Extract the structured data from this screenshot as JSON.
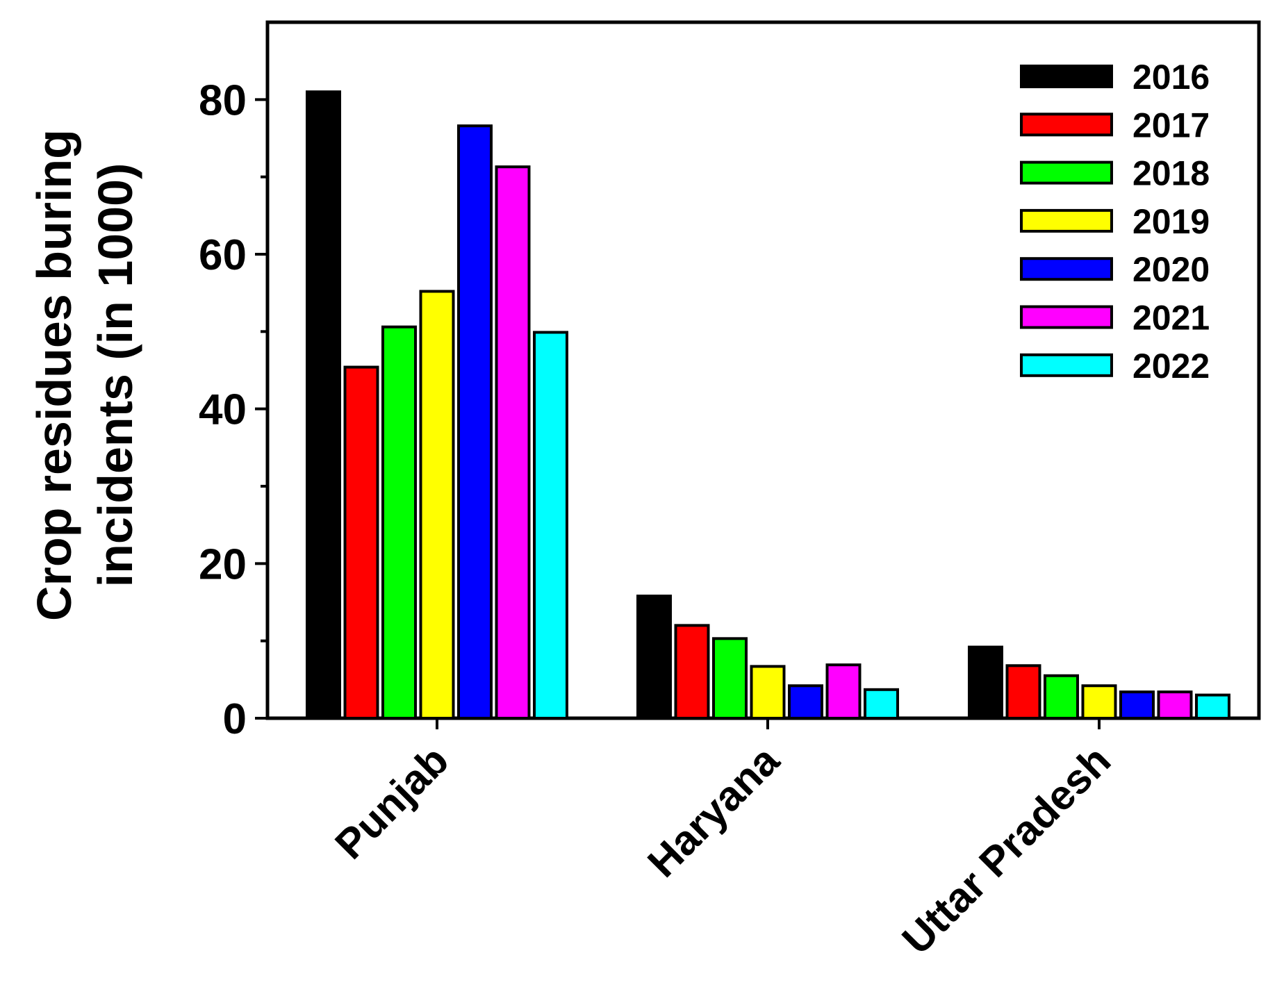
{
  "chart_data": {
    "type": "bar",
    "categories": [
      "Punjab",
      "Haryana",
      "Uttar Pradesh"
    ],
    "series": [
      {
        "name": "2016",
        "color": "#000000",
        "values": [
          81.0,
          15.8,
          9.2
        ]
      },
      {
        "name": "2017",
        "color": "#ff0000",
        "values": [
          45.4,
          12.0,
          6.8
        ]
      },
      {
        "name": "2018",
        "color": "#00ff00",
        "values": [
          50.6,
          10.3,
          5.5
        ]
      },
      {
        "name": "2019",
        "color": "#ffff00",
        "values": [
          55.2,
          6.7,
          4.2
        ]
      },
      {
        "name": "2020",
        "color": "#0000ff",
        "values": [
          76.6,
          4.2,
          3.4
        ]
      },
      {
        "name": "2021",
        "color": "#ff00ff",
        "values": [
          71.3,
          6.9,
          3.4
        ]
      },
      {
        "name": "2022",
        "color": "#00ffff",
        "values": [
          49.9,
          3.7,
          3.0
        ]
      }
    ],
    "ylabel_lines": [
      "Crop residues buring",
      "incidents (in 1000)"
    ],
    "xlabel": "",
    "ylim": [
      0,
      90
    ],
    "yticks": [
      0,
      20,
      40,
      60,
      80
    ],
    "grid": false,
    "legend_position": "top-right"
  }
}
